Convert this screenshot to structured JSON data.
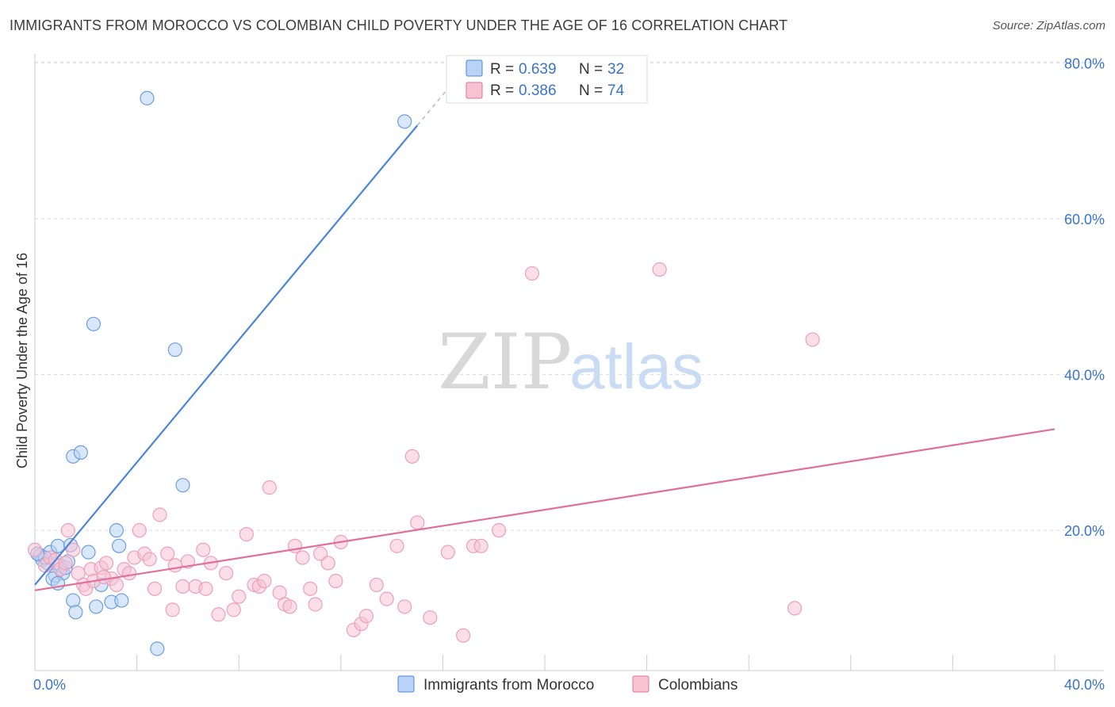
{
  "title": "IMMIGRANTS FROM MOROCCO VS COLOMBIAN CHILD POVERTY UNDER THE AGE OF 16 CORRELATION CHART",
  "source": "Source: ZipAtlas.com",
  "watermark": {
    "zip": "ZIP",
    "atlas": "atlas"
  },
  "colors": {
    "blue": "#4a86d8",
    "blue_fill": "#b8d3f5",
    "pink": "#e0709a",
    "pink_fill": "#f7c3d3",
    "tick_text": "#3a74c9"
  },
  "chart_data": {
    "type": "scatter",
    "title": "IMMIGRANTS FROM MOROCCO VS COLOMBIAN CHILD POVERTY UNDER THE AGE OF 16 CORRELATION CHART",
    "xlabel": "",
    "ylabel": "Child Poverty Under the Age of 16",
    "xlim": [
      0,
      40
    ],
    "ylim": [
      2,
      82
    ],
    "x_tick_labels": [
      {
        "value": 0,
        "label": "0.0%"
      },
      {
        "value": 40,
        "label": "40.0%"
      }
    ],
    "y_tick_labels": [
      {
        "value": 20,
        "label": "20.0%"
      },
      {
        "value": 40,
        "label": "40.0%"
      },
      {
        "value": 60,
        "label": "60.0%"
      },
      {
        "value": 80,
        "label": "80.0%"
      }
    ],
    "legend_top": [
      {
        "r_label": "R = ",
        "r": "0.639",
        "n_label": "N = ",
        "n": "32"
      },
      {
        "r_label": "R = ",
        "r": "0.386",
        "n_label": "N = ",
        "n": "74"
      }
    ],
    "series": [
      {
        "name": "Immigrants from Morocco",
        "color": "#4a86d8",
        "trend": {
          "x0": 0,
          "y0": 13.0,
          "x1": 15.0,
          "y1": 72.0,
          "dash_to_x": 16.5
        },
        "points": [
          [
            0.2,
            16.8
          ],
          [
            0.3,
            16.2
          ],
          [
            0.5,
            15.8
          ],
          [
            0.6,
            17.2
          ],
          [
            0.4,
            16.5
          ],
          [
            0.8,
            14.2
          ],
          [
            0.7,
            13.8
          ],
          [
            0.9,
            18.0
          ],
          [
            1.0,
            15.5
          ],
          [
            1.1,
            14.5
          ],
          [
            1.2,
            15.2
          ],
          [
            1.3,
            16.0
          ],
          [
            1.4,
            18.1
          ],
          [
            1.5,
            11.0
          ],
          [
            1.6,
            9.5
          ],
          [
            1.5,
            29.5
          ],
          [
            1.8,
            30.0
          ],
          [
            2.1,
            17.2
          ],
          [
            2.3,
            46.5
          ],
          [
            2.4,
            10.2
          ],
          [
            2.6,
            13.0
          ],
          [
            3.0,
            10.8
          ],
          [
            3.2,
            20.0
          ],
          [
            3.3,
            18.0
          ],
          [
            3.4,
            11.0
          ],
          [
            4.4,
            75.5
          ],
          [
            4.8,
            4.8
          ],
          [
            5.5,
            43.2
          ],
          [
            5.8,
            25.8
          ],
          [
            14.5,
            72.5
          ],
          [
            0.1,
            17.0
          ],
          [
            0.9,
            13.2
          ]
        ]
      },
      {
        "name": "Colombians",
        "color": "#e0709a",
        "trend": {
          "x0": 0,
          "y0": 12.3,
          "x1": 40,
          "y1": 33.0
        },
        "points": [
          [
            0.0,
            17.5
          ],
          [
            0.4,
            15.5
          ],
          [
            0.6,
            16.5
          ],
          [
            0.8,
            16.2
          ],
          [
            1.0,
            15.0
          ],
          [
            1.2,
            15.8
          ],
          [
            1.3,
            20.0
          ],
          [
            1.5,
            17.5
          ],
          [
            1.7,
            14.5
          ],
          [
            1.9,
            13.0
          ],
          [
            2.0,
            12.5
          ],
          [
            2.2,
            15.0
          ],
          [
            2.3,
            13.5
          ],
          [
            2.6,
            15.2
          ],
          [
            2.8,
            15.8
          ],
          [
            3.0,
            13.8
          ],
          [
            3.2,
            13.0
          ],
          [
            3.5,
            15.0
          ],
          [
            3.7,
            14.5
          ],
          [
            3.9,
            16.5
          ],
          [
            4.1,
            20.0
          ],
          [
            4.3,
            17.0
          ],
          [
            4.5,
            16.3
          ],
          [
            4.7,
            12.5
          ],
          [
            4.9,
            22.0
          ],
          [
            5.2,
            17.0
          ],
          [
            5.4,
            9.8
          ],
          [
            5.5,
            15.5
          ],
          [
            5.8,
            12.8
          ],
          [
            6.0,
            16.0
          ],
          [
            6.3,
            12.8
          ],
          [
            6.6,
            17.5
          ],
          [
            6.9,
            15.8
          ],
          [
            7.2,
            9.2
          ],
          [
            7.5,
            14.5
          ],
          [
            7.8,
            9.8
          ],
          [
            8.0,
            11.5
          ],
          [
            8.3,
            19.5
          ],
          [
            8.6,
            13.0
          ],
          [
            8.8,
            12.8
          ],
          [
            9.0,
            13.5
          ],
          [
            9.2,
            25.5
          ],
          [
            9.6,
            12.0
          ],
          [
            9.8,
            10.5
          ],
          [
            10.0,
            10.2
          ],
          [
            10.2,
            18.0
          ],
          [
            10.5,
            16.5
          ],
          [
            10.8,
            12.5
          ],
          [
            11.0,
            10.5
          ],
          [
            11.2,
            17.0
          ],
          [
            11.5,
            15.8
          ],
          [
            11.8,
            13.5
          ],
          [
            12.0,
            18.5
          ],
          [
            12.5,
            7.2
          ],
          [
            12.8,
            8.0
          ],
          [
            13.0,
            9.0
          ],
          [
            13.4,
            13.0
          ],
          [
            13.8,
            11.2
          ],
          [
            14.2,
            18.0
          ],
          [
            14.5,
            10.2
          ],
          [
            14.8,
            29.5
          ],
          [
            15.0,
            21.0
          ],
          [
            15.5,
            8.8
          ],
          [
            16.2,
            17.2
          ],
          [
            16.8,
            6.5
          ],
          [
            17.2,
            18.0
          ],
          [
            17.5,
            18.0
          ],
          [
            18.2,
            20.0
          ],
          [
            19.5,
            53.0
          ],
          [
            24.5,
            53.5
          ],
          [
            30.5,
            44.5
          ],
          [
            29.8,
            10.0
          ],
          [
            2.7,
            14.0
          ],
          [
            6.7,
            12.5
          ]
        ]
      }
    ],
    "legend": [
      {
        "label": "Immigrants from Morocco",
        "color": "#4a86d8"
      },
      {
        "label": "Colombians",
        "color": "#e0709a"
      }
    ]
  }
}
